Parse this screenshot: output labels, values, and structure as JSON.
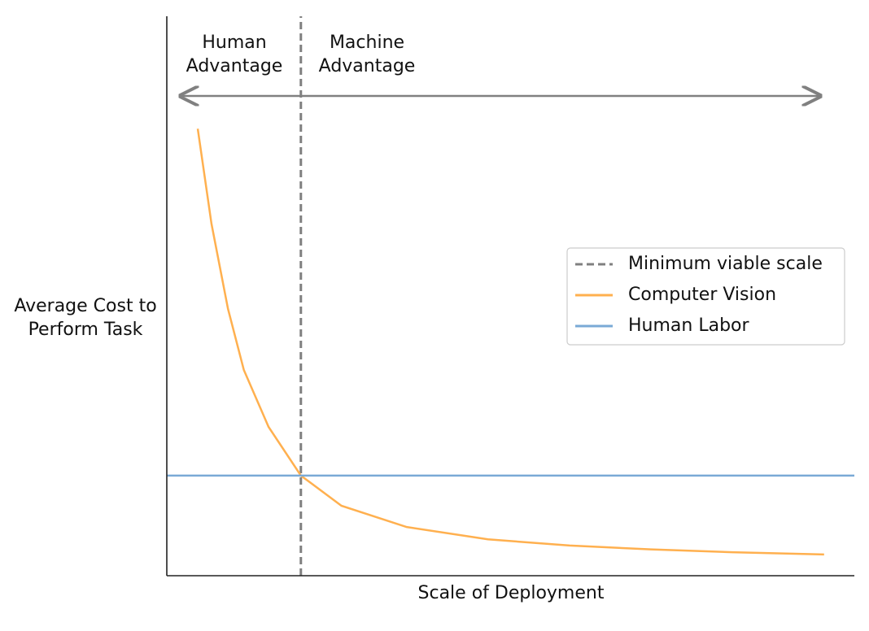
{
  "chart_data": {
    "type": "line",
    "x_label": "Scale of Deployment",
    "y_label": "Average Cost to\nPerform Task",
    "annotations": [
      "Human\nAdvantage",
      "Machine\nAdvantage"
    ],
    "xlim": [
      0,
      10
    ],
    "ylim": [
      0,
      10
    ],
    "legend": "center right",
    "series": [
      {
        "name": "Minimum viable scale",
        "color": "#808080",
        "dashed": true,
        "x": [
          1.95,
          1.95
        ],
        "values": [
          0,
          10
        ]
      },
      {
        "name": "Computer Vision",
        "color": "#ffb04f",
        "x": [
          0.45,
          0.65,
          0.89,
          1.12,
          1.48,
          1.95,
          2.54,
          3.49,
          4.67,
          5.86,
          7.04,
          8.22,
          9.56
        ],
        "values": [
          7.99,
          6.29,
          4.77,
          3.68,
          2.66,
          1.79,
          1.25,
          0.87,
          0.65,
          0.54,
          0.47,
          0.42,
          0.38
        ]
      },
      {
        "name": "Human Labor",
        "color": "#7aaad6",
        "x": [
          0,
          10
        ],
        "values": [
          1.79,
          1.79
        ]
      }
    ]
  }
}
